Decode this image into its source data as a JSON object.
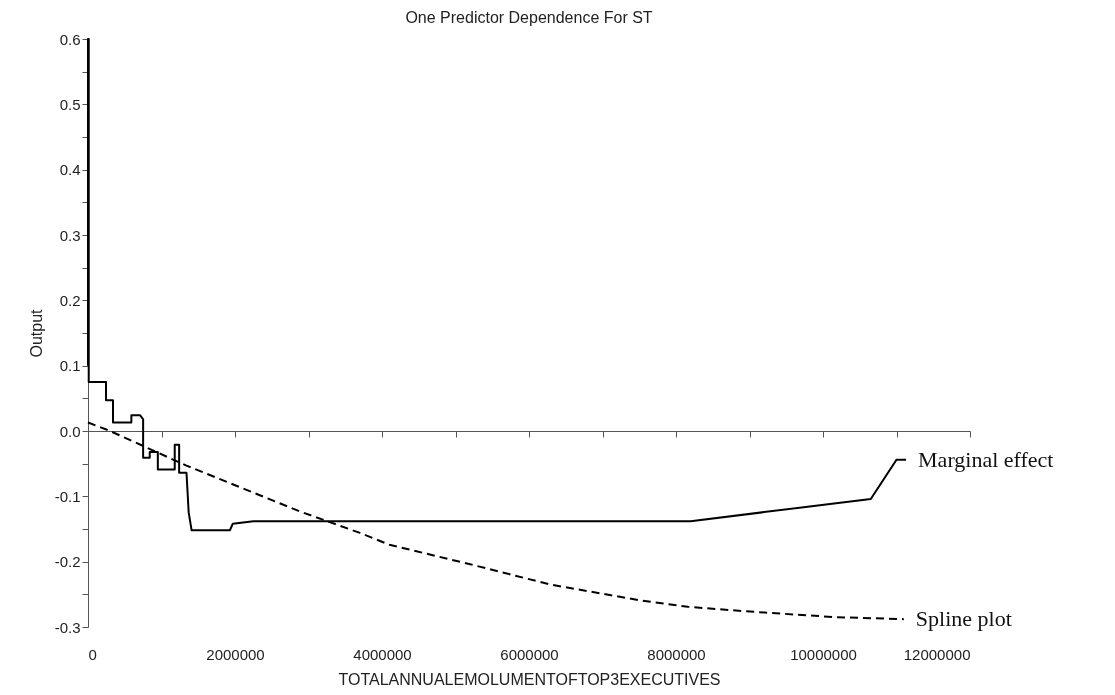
{
  "chart_data": {
    "type": "line",
    "title": "One Predictor Dependence For ST",
    "xlabel": "TOTALANNUALEMOLUMENTOFTOP3EXECUTIVES",
    "ylabel": "Output",
    "xlim": [
      0,
      12000000
    ],
    "xticks": [
      0,
      {
        "value": 1000000,
        "label": null
      },
      2000000,
      {
        "value": 3000000,
        "label": null
      },
      4000000,
      {
        "value": 5000000,
        "label": null
      },
      6000000,
      {
        "value": 7000000,
        "label": null
      },
      8000000,
      {
        "value": 9000000,
        "label": null
      },
      10000000,
      {
        "value": 11000000,
        "label": null
      },
      12000000
    ],
    "ylim": [
      -0.3,
      0.6
    ],
    "yticks": [
      -0.3,
      {
        "value": -0.25,
        "label": null
      },
      -0.2,
      {
        "value": -0.15,
        "label": null
      },
      -0.1,
      {
        "value": -0.05,
        "label": null
      },
      {
        "value": 0,
        "label": "0.0"
      },
      {
        "value": 0.05,
        "label": null
      },
      0.1,
      {
        "value": 0.15,
        "label": null
      },
      0.2,
      {
        "value": 0.25,
        "label": null
      },
      0.3,
      {
        "value": 0.35,
        "label": null
      },
      0.4,
      {
        "value": 0.45,
        "label": null
      },
      0.5,
      {
        "value": 0.55,
        "label": null
      },
      0.6
    ],
    "series": [
      {
        "name": "Marginal effect",
        "color": "#000000",
        "line_style": "solid",
        "x": [
          0,
          0,
          10000,
          10000,
          245000,
          245000,
          340000,
          340000,
          590000,
          590000,
          710000,
          750000,
          750000,
          840000,
          840000,
          950000,
          950000,
          1180000,
          1180000,
          1240000,
          1240000,
          1340000,
          1370000,
          1410000,
          1930000,
          1970000,
          2250000,
          8200000,
          10650000,
          11000000,
          11130000
        ],
        "values": [
          0.1,
          0.6,
          0.6,
          0.075,
          0.075,
          0.047,
          0.047,
          0.013,
          0.013,
          0.024,
          0.024,
          0.018,
          -0.041,
          -0.041,
          -0.032,
          -0.032,
          -0.059,
          -0.059,
          -0.021,
          -0.021,
          -0.064,
          -0.064,
          -0.125,
          -0.152,
          -0.152,
          -0.142,
          -0.138,
          -0.138,
          -0.104,
          -0.044,
          -0.044
        ]
      },
      {
        "name": "Spline plot",
        "color": "#000000",
        "line_style": "dashed",
        "x": [
          0,
          300000,
          1340000,
          2880000,
          3700000,
          4100000,
          5200000,
          6290000,
          7500000,
          8160000,
          8950000,
          10180000,
          11100000
        ],
        "values": [
          0.013,
          0,
          -0.053,
          -0.123,
          -0.156,
          -0.174,
          -0.204,
          -0.235,
          -0.259,
          -0.269,
          -0.276,
          -0.285,
          -0.288
        ]
      }
    ]
  }
}
